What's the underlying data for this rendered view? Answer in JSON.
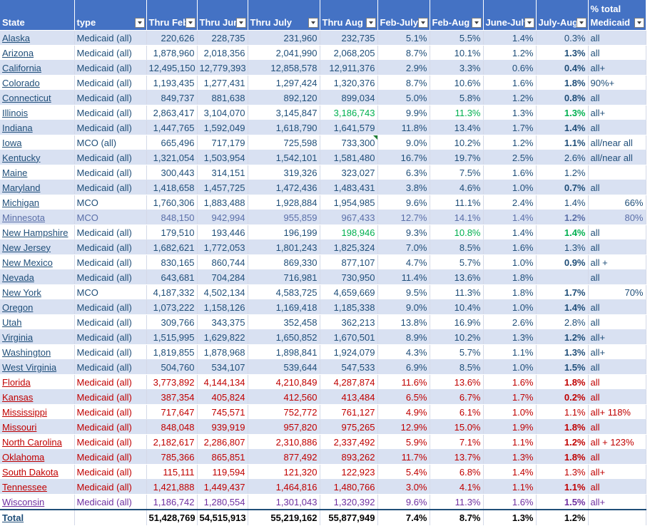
{
  "headers": [
    {
      "line1": "",
      "line2": "State",
      "filter": false
    },
    {
      "line1": "",
      "line2": "type",
      "filter": true
    },
    {
      "line1": "",
      "line2": "Thru Feb",
      "filter": true
    },
    {
      "line1": "",
      "line2": "Thru Jun",
      "filter": true
    },
    {
      "line1": "",
      "line2": "Thru July",
      "filter": true
    },
    {
      "line1": "",
      "line2": "Thru Aug",
      "filter": true
    },
    {
      "line1": "",
      "line2": "Feb-July",
      "filter": true
    },
    {
      "line1": "",
      "line2": "Feb-Aug",
      "filter": true
    },
    {
      "line1": "",
      "line2": "June-July",
      "filter": true
    },
    {
      "line1": "",
      "line2": "July-Aug",
      "filter": true
    },
    {
      "line1": "% total",
      "line2": "Medicaid",
      "filter": true
    }
  ],
  "rows": [
    {
      "state": "Alaska",
      "type": "Medicaid (all)",
      "feb": "220,626",
      "jun": "228,735",
      "jul": "231,960",
      "aug": "232,735",
      "febjul": "5.1%",
      "febaug": "5.5%",
      "junjul": "1.4%",
      "julaug": "0.3%",
      "pct": "all",
      "group": "blue"
    },
    {
      "state": "Arizona",
      "type": "Medicaid (all)",
      "feb": "1,878,960",
      "jun": "2,018,356",
      "jul": "2,041,990",
      "aug": "2,068,205",
      "febjul": "8.7%",
      "febaug": "10.1%",
      "junjul": "1.2%",
      "julaug": "1.3%",
      "pct": "all",
      "group": "blue",
      "bold": true
    },
    {
      "state": "California",
      "type": "Medicaid (all)",
      "feb": "12,495,150",
      "jun": "12,779,393",
      "jul": "12,858,578",
      "aug": "12,911,376",
      "febjul": "2.9%",
      "febaug": "3.3%",
      "junjul": "0.6%",
      "julaug": "0.4%",
      "pct": "all+",
      "group": "blue",
      "bold": true
    },
    {
      "state": "Colorado",
      "type": "Medicaid (all)",
      "feb": "1,193,435",
      "jun": "1,277,431",
      "jul": "1,297,424",
      "aug": "1,320,376",
      "febjul": "8.7%",
      "febaug": "10.6%",
      "junjul": "1.6%",
      "julaug": "1.8%",
      "pct": "90%+",
      "group": "blue",
      "bold": true
    },
    {
      "state": "Connecticut",
      "type": "Medicaid (all)",
      "feb": "849,737",
      "jun": "881,638",
      "jul": "892,120",
      "aug": "899,034",
      "febjul": "5.0%",
      "febaug": "5.8%",
      "junjul": "1.2%",
      "julaug": "0.8%",
      "pct": "all",
      "group": "blue",
      "bold": true
    },
    {
      "state": "Illinois",
      "type": "Medicaid (all)",
      "feb": "2,863,417",
      "jun": "3,104,070",
      "jul": "3,145,847",
      "aug": "3,186,743",
      "febjul": "9.9%",
      "febaug": "11.3%",
      "junjul": "1.3%",
      "julaug": "1.3%",
      "pct": "all+",
      "group": "blue",
      "green": true
    },
    {
      "state": "Indiana",
      "type": "Medicaid (all)",
      "feb": "1,447,765",
      "jun": "1,592,049",
      "jul": "1,618,790",
      "aug": "1,641,579",
      "febjul": "11.8%",
      "febaug": "13.4%",
      "junjul": "1.7%",
      "julaug": "1.4%",
      "pct": "all",
      "group": "blue",
      "bold": true
    },
    {
      "state": "Iowa",
      "type": "MCO (all)",
      "feb": "665,496",
      "jun": "717,179",
      "jul": "725,598",
      "aug": "733,300",
      "febjul": "9.0%",
      "febaug": "10.2%",
      "junjul": "1.2%",
      "julaug": "1.1%",
      "pct": "all/near all",
      "group": "blue",
      "bold": true,
      "comment": true
    },
    {
      "state": "Kentucky",
      "type": "Medicaid (all)",
      "feb": "1,321,054",
      "jun": "1,503,954",
      "jul": "1,542,101",
      "aug": "1,581,480",
      "febjul": "16.7%",
      "febaug": "19.7%",
      "junjul": "2.5%",
      "julaug": "2.6%",
      "pct": "all/near all",
      "group": "blue"
    },
    {
      "state": "Maine",
      "type": "Medicaid (all)",
      "feb": "300,443",
      "jun": "314,151",
      "jul": "319,326",
      "aug": "323,027",
      "febjul": "6.3%",
      "febaug": "7.5%",
      "junjul": "1.6%",
      "julaug": "1.2%",
      "pct": "",
      "group": "blue"
    },
    {
      "state": "Maryland",
      "type": "Medicaid (all)",
      "feb": "1,418,658",
      "jun": "1,457,725",
      "jul": "1,472,436",
      "aug": "1,483,431",
      "febjul": "3.8%",
      "febaug": "4.6%",
      "junjul": "1.0%",
      "julaug": "0.7%",
      "pct": "all",
      "group": "blue",
      "bold": true
    },
    {
      "state": "Michigan",
      "type": "MCO",
      "feb": "1,760,306",
      "jun": "1,883,488",
      "jul": "1,928,884",
      "aug": "1,954,985",
      "febjul": "9.6%",
      "febaug": "11.1%",
      "junjul": "2.4%",
      "julaug": "1.4%",
      "pct": "66%",
      "group": "blue",
      "pctright": true
    },
    {
      "state": "Minnesota",
      "type": "MCO",
      "feb": "848,150",
      "jun": "942,994",
      "jul": "955,859",
      "aug": "967,433",
      "febjul": "12.7%",
      "febaug": "14.1%",
      "junjul": "1.4%",
      "julaug": "1.2%",
      "pct": "80%",
      "group": "mn",
      "bold": true,
      "pctright": true
    },
    {
      "state": "New Hampshire",
      "type": "Medicaid (all)",
      "feb": "179,510",
      "jun": "193,446",
      "jul": "196,199",
      "aug": "198,946",
      "febjul": "9.3%",
      "febaug": "10.8%",
      "junjul": "1.4%",
      "julaug": "1.4%",
      "pct": "all",
      "group": "blue",
      "green": true
    },
    {
      "state": "New Jersey",
      "type": "Medicaid (all)",
      "feb": "1,682,621",
      "jun": "1,772,053",
      "jul": "1,801,243",
      "aug": "1,825,324",
      "febjul": "7.0%",
      "febaug": "8.5%",
      "junjul": "1.6%",
      "julaug": "1.3%",
      "pct": "all",
      "group": "blue"
    },
    {
      "state": "New Mexico",
      "type": "Medicaid (all)",
      "feb": "830,165",
      "jun": "860,744",
      "jul": "869,330",
      "aug": "877,107",
      "febjul": "4.7%",
      "febaug": "5.7%",
      "junjul": "1.0%",
      "julaug": "0.9%",
      "pct": "all +",
      "group": "blue",
      "bold": true
    },
    {
      "state": "Nevada",
      "type": "Medicaid (all)",
      "feb": "643,681",
      "jun": "704,284",
      "jul": "716,981",
      "aug": "730,950",
      "febjul": "11.4%",
      "febaug": "13.6%",
      "junjul": "1.8%",
      "julaug": "",
      "pct": "all",
      "group": "blue"
    },
    {
      "state": "New York",
      "type": "MCO",
      "feb": "4,187,332",
      "jun": "4,502,134",
      "jul": "4,583,725",
      "aug": "4,659,669",
      "febjul": "9.5%",
      "febaug": "11.3%",
      "junjul": "1.8%",
      "julaug": "1.7%",
      "pct": "70%",
      "group": "blue",
      "bold": true,
      "pctright": true
    },
    {
      "state": "Oregon",
      "type": "Medicaid (all)",
      "feb": "1,073,222",
      "jun": "1,158,126",
      "jul": "1,169,418",
      "aug": "1,185,338",
      "febjul": "9.0%",
      "febaug": "10.4%",
      "junjul": "1.0%",
      "julaug": "1.4%",
      "pct": "all",
      "group": "blue",
      "bold": true
    },
    {
      "state": "Utah",
      "type": "Medicaid (all)",
      "feb": "309,766",
      "jun": "343,375",
      "jul": "352,458",
      "aug": "362,213",
      "febjul": "13.8%",
      "febaug": "16.9%",
      "junjul": "2.6%",
      "julaug": "2.8%",
      "pct": "all",
      "group": "blue"
    },
    {
      "state": "Virginia",
      "type": "Medicaid (all)",
      "feb": "1,515,995",
      "jun": "1,629,822",
      "jul": "1,650,852",
      "aug": "1,670,501",
      "febjul": "8.9%",
      "febaug": "10.2%",
      "junjul": "1.3%",
      "julaug": "1.2%",
      "pct": "all+",
      "group": "blue",
      "bold": true
    },
    {
      "state": "Washington",
      "type": "Medicaid (all)",
      "feb": "1,819,855",
      "jun": "1,878,968",
      "jul": "1,898,841",
      "aug": "1,924,079",
      "febjul": "4.3%",
      "febaug": "5.7%",
      "junjul": "1.1%",
      "julaug": "1.3%",
      "pct": "all+",
      "group": "blue",
      "bold": true
    },
    {
      "state": "West Virginia",
      "type": "Medicaid (all)",
      "feb": "504,760",
      "jun": "534,107",
      "jul": "539,644",
      "aug": "547,533",
      "febjul": "6.9%",
      "febaug": "8.5%",
      "junjul": "1.0%",
      "julaug": "1.5%",
      "pct": "all",
      "group": "blue",
      "bold": true
    },
    {
      "state": "Florida",
      "type": "Medicaid (all)",
      "feb": "3,773,892",
      "jun": "4,144,134",
      "jul": "4,210,849",
      "aug": "4,287,874",
      "febjul": "11.6%",
      "febaug": "13.6%",
      "junjul": "1.6%",
      "julaug": "1.8%",
      "pct": "all",
      "group": "red",
      "bold": true
    },
    {
      "state": "Kansas",
      "type": "Medicaid (all)",
      "feb": "387,354",
      "jun": "405,824",
      "jul": "412,560",
      "aug": "413,484",
      "febjul": "6.5%",
      "febaug": "6.7%",
      "junjul": "1.7%",
      "julaug": "0.2%",
      "pct": "all",
      "group": "red",
      "bold": true
    },
    {
      "state": "Mississippi",
      "type": "Medicaid (all)",
      "feb": "717,647",
      "jun": "745,571",
      "jul": "752,772",
      "aug": "761,127",
      "febjul": "4.9%",
      "febaug": "6.1%",
      "junjul": "1.0%",
      "julaug": "1.1%",
      "pct": "all+ 118%",
      "group": "red"
    },
    {
      "state": "Missouri",
      "type": "Medicaid (all)",
      "feb": "848,048",
      "jun": "939,919",
      "jul": "957,820",
      "aug": "975,265",
      "febjul": "12.9%",
      "febaug": "15.0%",
      "junjul": "1.9%",
      "julaug": "1.8%",
      "pct": "all",
      "group": "red",
      "bold": true
    },
    {
      "state": "North Carolina",
      "type": "Medicaid (all)",
      "feb": "2,182,617",
      "jun": "2,286,807",
      "jul": "2,310,886",
      "aug": "2,337,492",
      "febjul": "5.9%",
      "febaug": "7.1%",
      "junjul": "1.1%",
      "julaug": "1.2%",
      "pct": "all + 123%",
      "group": "red",
      "bold": true
    },
    {
      "state": "Oklahoma",
      "type": "Medicaid (all)",
      "feb": "785,366",
      "jun": "865,851",
      "jul": "877,492",
      "aug": "893,262",
      "febjul": "11.7%",
      "febaug": "13.7%",
      "junjul": "1.3%",
      "julaug": "1.8%",
      "pct": "all",
      "group": "red",
      "bold": true
    },
    {
      "state": "South Dakota",
      "type": "Medicaid (all)",
      "feb": "115,111",
      "jun": "119,594",
      "jul": "121,320",
      "aug": "122,923",
      "febjul": "5.4%",
      "febaug": "6.8%",
      "junjul": "1.4%",
      "julaug": "1.3%",
      "pct": "all+",
      "group": "red"
    },
    {
      "state": "Tennessee",
      "type": "Medicaid (all)",
      "feb": "1,421,888",
      "jun": "1,449,437",
      "jul": "1,464,816",
      "aug": "1,480,766",
      "febjul": "3.0%",
      "febaug": "4.1%",
      "junjul": "1.1%",
      "julaug": "1.1%",
      "pct": "all",
      "group": "red",
      "bold": true
    },
    {
      "state": "Wisconsin",
      "type": "Medicaid (all)",
      "feb": "1,186,742",
      "jun": "1,280,554",
      "jul": "1,301,043",
      "aug": "1,320,392",
      "febjul": "9.6%",
      "febaug": "11.3%",
      "junjul": "1.6%",
      "julaug": "1.5%",
      "pct": "all+",
      "group": "purple",
      "bold": true
    }
  ],
  "total": {
    "state": "Total",
    "type": "",
    "feb": "51,428,769",
    "jun": "54,515,913",
    "jul": "55,219,162",
    "aug": "55,877,949",
    "febjul": "7.4%",
    "febaug": "8.7%",
    "junjul": "1.3%",
    "julaug": "1.2%",
    "pct": ""
  },
  "colors": {
    "header_bg": "#4472c4",
    "band": "#d9e1f2",
    "blue_text": "#1f4e79",
    "red_text": "#c00000",
    "purple_text": "#7030a0",
    "green_text": "#00b050"
  }
}
